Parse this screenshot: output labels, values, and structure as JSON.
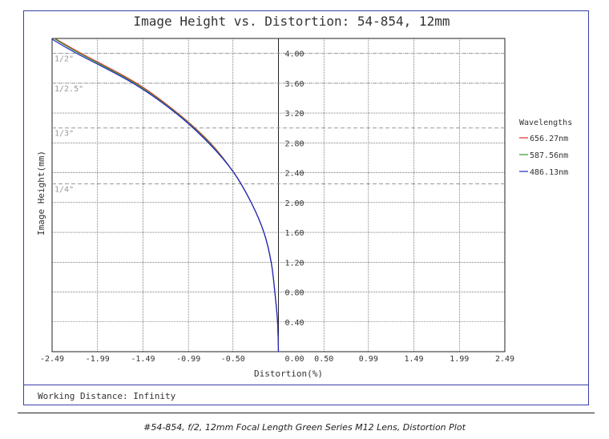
{
  "caption": "#54-854, f/2, 12mm Focal Length Green Series M12 Lens, Distortion Plot",
  "working_distance": "Working Distance: Infinity",
  "chart_data": {
    "type": "line",
    "title": "Image Height vs. Distortion: 54-854, 12mm",
    "xlabel": "Distortion(%)",
    "ylabel": "Image Height(mm)",
    "xlim": [
      -2.49,
      2.49
    ],
    "ylim": [
      0,
      4.2
    ],
    "x_ticks": [
      "-2.49",
      "-1.99",
      "-1.49",
      "-0.99",
      "-0.50",
      "0.00",
      "0.50",
      "0.99",
      "1.49",
      "1.99",
      "2.49"
    ],
    "x_tick_values": [
      -2.49,
      -1.99,
      -1.49,
      -0.99,
      -0.5,
      0.0,
      0.5,
      0.99,
      1.49,
      1.99,
      2.49
    ],
    "y_ticks": [
      "0.40",
      "0.80",
      "1.20",
      "1.60",
      "2.00",
      "2.40",
      "2.80",
      "3.20",
      "3.60",
      "4.00"
    ],
    "y_tick_values": [
      0.4,
      0.8,
      1.2,
      1.6,
      2.0,
      2.4,
      2.8,
      3.2,
      3.6,
      4.0
    ],
    "grid": true,
    "legend_title": "Wavelengths",
    "legend_position": "right",
    "sensor_formats": [
      {
        "label": "1/2\"",
        "y": 4.0
      },
      {
        "label": "1/2.5\"",
        "y": 3.6
      },
      {
        "label": "1/3\"",
        "y": 3.0
      },
      {
        "label": "1/4\"",
        "y": 2.25
      }
    ],
    "series": [
      {
        "name": "656.27nm",
        "color": "#e03030",
        "points": [
          [
            0,
            0
          ],
          [
            -0.01,
            0.4
          ],
          [
            -0.04,
            0.8
          ],
          [
            -0.08,
            1.2
          ],
          [
            -0.16,
            1.6
          ],
          [
            -0.3,
            2.0
          ],
          [
            -0.49,
            2.4
          ],
          [
            -0.75,
            2.8
          ],
          [
            -1.11,
            3.2
          ],
          [
            -1.56,
            3.6
          ],
          [
            -2.17,
            4.0
          ],
          [
            -2.46,
            4.2
          ]
        ]
      },
      {
        "name": "587.56nm",
        "color": "#2e9a2e",
        "points": [
          [
            0,
            0
          ],
          [
            -0.01,
            0.4
          ],
          [
            -0.04,
            0.8
          ],
          [
            -0.08,
            1.2
          ],
          [
            -0.16,
            1.6
          ],
          [
            -0.3,
            2.0
          ],
          [
            -0.49,
            2.4
          ],
          [
            -0.76,
            2.8
          ],
          [
            -1.12,
            3.2
          ],
          [
            -1.58,
            3.6
          ],
          [
            -2.19,
            4.0
          ],
          [
            -2.47,
            4.2
          ]
        ]
      },
      {
        "name": "486.13nm",
        "color": "#2424c8",
        "points": [
          [
            0,
            0
          ],
          [
            -0.01,
            0.4
          ],
          [
            -0.04,
            0.8
          ],
          [
            -0.08,
            1.2
          ],
          [
            -0.16,
            1.6
          ],
          [
            -0.3,
            2.0
          ],
          [
            -0.49,
            2.4
          ],
          [
            -0.77,
            2.8
          ],
          [
            -1.13,
            3.2
          ],
          [
            -1.6,
            3.6
          ],
          [
            -2.22,
            4.0
          ],
          [
            -2.49,
            4.19
          ]
        ]
      }
    ]
  }
}
